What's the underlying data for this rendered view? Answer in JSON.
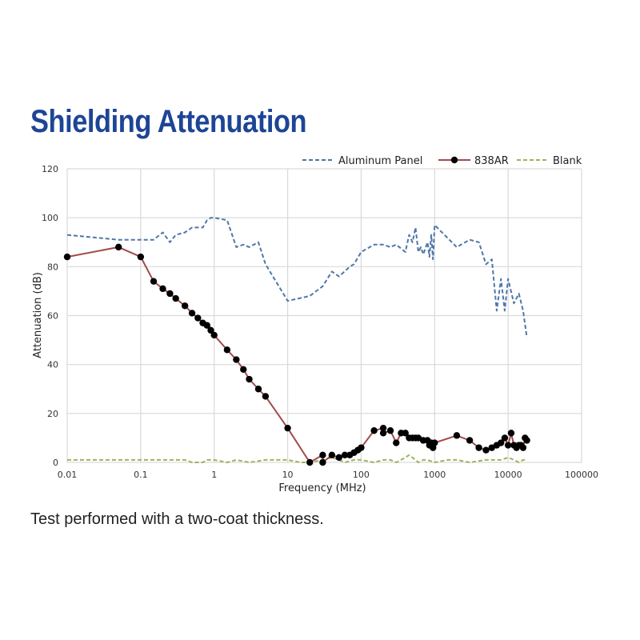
{
  "title": "Shielding Attenuation",
  "caption": "Test performed with a two-coat thickness.",
  "colors": {
    "title": "#1d4596",
    "aluminum": "#4f77a8",
    "ar838_line": "#a34a4a",
    "ar838_marker": "#000000",
    "blank": "#9bb55a",
    "grid": "#d9d9d9"
  },
  "chart_data": {
    "type": "line",
    "title": "Shielding Attenuation",
    "xlabel": "Frequency (MHz)",
    "ylabel": "Attenuation (dB)",
    "xscale": "log",
    "xlim": [
      0.01,
      100000
    ],
    "ylim": [
      0,
      120
    ],
    "x_ticks": [
      "0.01",
      "0.1",
      "1",
      "10",
      "100",
      "1000",
      "10000",
      "100000"
    ],
    "x_tick_values": [
      0.01,
      0.1,
      1,
      10,
      100,
      1000,
      10000,
      100000
    ],
    "y_ticks": [
      "0",
      "20",
      "40",
      "60",
      "80",
      "100",
      "120"
    ],
    "y_tick_values": [
      0,
      20,
      40,
      60,
      80,
      100,
      120
    ],
    "grid": true,
    "legend_position": "top-right",
    "series": [
      {
        "name": "Aluminum Panel",
        "style": "dashed",
        "marker": false,
        "x": [
          0.01,
          0.05,
          0.1,
          0.15,
          0.2,
          0.25,
          0.3,
          0.4,
          0.5,
          0.7,
          0.8,
          0.9,
          1.0,
          1.5,
          2.0,
          2.5,
          3.0,
          4.0,
          5.0,
          10,
          20,
          30,
          40,
          50,
          70,
          80,
          100,
          150,
          200,
          250,
          300,
          400,
          450,
          500,
          550,
          600,
          650,
          700,
          800,
          850,
          900,
          950,
          1000,
          2000,
          3000,
          4000,
          5000,
          6000,
          7000,
          8000,
          9000,
          10000,
          12000,
          14000,
          16000,
          18000
        ],
        "y": [
          93,
          91,
          91,
          91,
          94,
          90,
          93,
          94,
          96,
          96,
          99,
          100,
          100,
          99,
          88,
          89,
          88,
          90,
          81,
          66,
          68,
          72,
          78,
          76,
          80,
          81,
          86,
          89,
          89,
          88,
          89,
          86,
          93,
          90,
          96,
          86,
          88,
          85,
          90,
          84,
          93,
          83,
          97,
          88,
          91,
          90,
          81,
          83,
          62,
          75,
          62,
          75,
          65,
          69,
          62,
          51
        ]
      },
      {
        "name": "838AR",
        "style": "solid",
        "marker": true,
        "x": [
          0.01,
          0.05,
          0.1,
          0.15,
          0.2,
          0.25,
          0.3,
          0.4,
          0.5,
          0.6,
          0.7,
          0.8,
          0.9,
          1.0,
          1.5,
          2.0,
          2.5,
          3.0,
          4.0,
          5.0,
          10,
          20,
          30,
          30,
          40,
          50,
          60,
          70,
          80,
          90,
          100,
          150,
          200,
          200,
          250,
          300,
          350,
          400,
          450,
          500,
          550,
          600,
          700,
          800,
          850,
          900,
          950,
          1000,
          2000,
          3000,
          4000,
          5000,
          6000,
          7000,
          8000,
          9000,
          10000,
          11000,
          12000,
          13000,
          14000,
          15000,
          16000,
          17000,
          18000
        ],
        "y": [
          84,
          88,
          84,
          74,
          71,
          69,
          67,
          64,
          61,
          59,
          57,
          56,
          54,
          52,
          46,
          42,
          38,
          34,
          30,
          27,
          14,
          0,
          3,
          0,
          3,
          2,
          3,
          3,
          4,
          5,
          6,
          13,
          14,
          12,
          13,
          8,
          12,
          12,
          10,
          10,
          10,
          10,
          9,
          9,
          7,
          8,
          6,
          8,
          11,
          9,
          6,
          5,
          6,
          7,
          8,
          10,
          7,
          12,
          7,
          6,
          7,
          7,
          6,
          10,
          9
        ]
      },
      {
        "name": "Blank",
        "style": "dashed",
        "marker": false,
        "x": [
          0.01,
          0.1,
          0.4,
          0.5,
          0.7,
          0.8,
          1.0,
          1.5,
          2.0,
          3.0,
          5.0,
          10,
          15,
          20,
          30,
          40,
          50,
          60,
          80,
          100,
          150,
          200,
          250,
          300,
          400,
          450,
          500,
          600,
          700,
          800,
          1000,
          1500,
          2000,
          3000,
          5000,
          8000,
          10000,
          12000,
          14000,
          16000,
          18000
        ],
        "y": [
          1,
          1,
          1,
          0,
          0,
          1,
          1,
          0,
          1,
          0,
          1,
          1,
          0,
          0,
          1,
          2,
          1,
          0,
          1,
          1,
          0,
          1,
          1,
          0,
          2,
          3,
          2,
          0,
          1,
          1,
          0,
          1,
          1,
          0,
          1,
          1,
          2,
          1,
          0,
          1,
          1
        ]
      }
    ]
  }
}
